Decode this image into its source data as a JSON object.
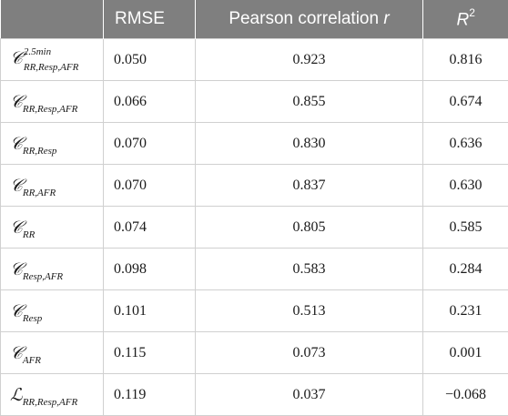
{
  "table": {
    "headers": {
      "c0": "",
      "c1": "RMSE",
      "c2_text": "Pearson correlation",
      "c2_var": "r",
      "c3_base": "R",
      "c3_exp": "2"
    },
    "rows": [
      {
        "symbol": "𝒞",
        "sub": "RR,Resp,AFR",
        "sup": "2.5min",
        "rmse": "0.050",
        "pearson": "0.923",
        "r2": "0.816"
      },
      {
        "symbol": "𝒞",
        "sub": "RR,Resp,AFR",
        "sup": "",
        "rmse": "0.066",
        "pearson": "0.855",
        "r2": "0.674"
      },
      {
        "symbol": "𝒞",
        "sub": "RR,Resp",
        "sup": "",
        "rmse": "0.070",
        "pearson": "0.830",
        "r2": "0.636"
      },
      {
        "symbol": "𝒞",
        "sub": "RR,AFR",
        "sup": "",
        "rmse": "0.070",
        "pearson": "0.837",
        "r2": "0.630"
      },
      {
        "symbol": "𝒞",
        "sub": "RR",
        "sup": "",
        "rmse": "0.074",
        "pearson": "0.805",
        "r2": "0.585"
      },
      {
        "symbol": "𝒞",
        "sub": "Resp,AFR",
        "sup": "",
        "rmse": "0.098",
        "pearson": "0.583",
        "r2": "0.284"
      },
      {
        "symbol": "𝒞",
        "sub": "Resp",
        "sup": "",
        "rmse": "0.101",
        "pearson": "0.513",
        "r2": "0.231"
      },
      {
        "symbol": "𝒞",
        "sub": "AFR",
        "sup": "",
        "rmse": "0.115",
        "pearson": "0.073",
        "r2": "0.001"
      },
      {
        "symbol": "ℒ",
        "sub": "RR,Resp,AFR",
        "sup": "",
        "rmse": "0.119",
        "pearson": "0.037",
        "r2": "−0.068"
      }
    ]
  }
}
